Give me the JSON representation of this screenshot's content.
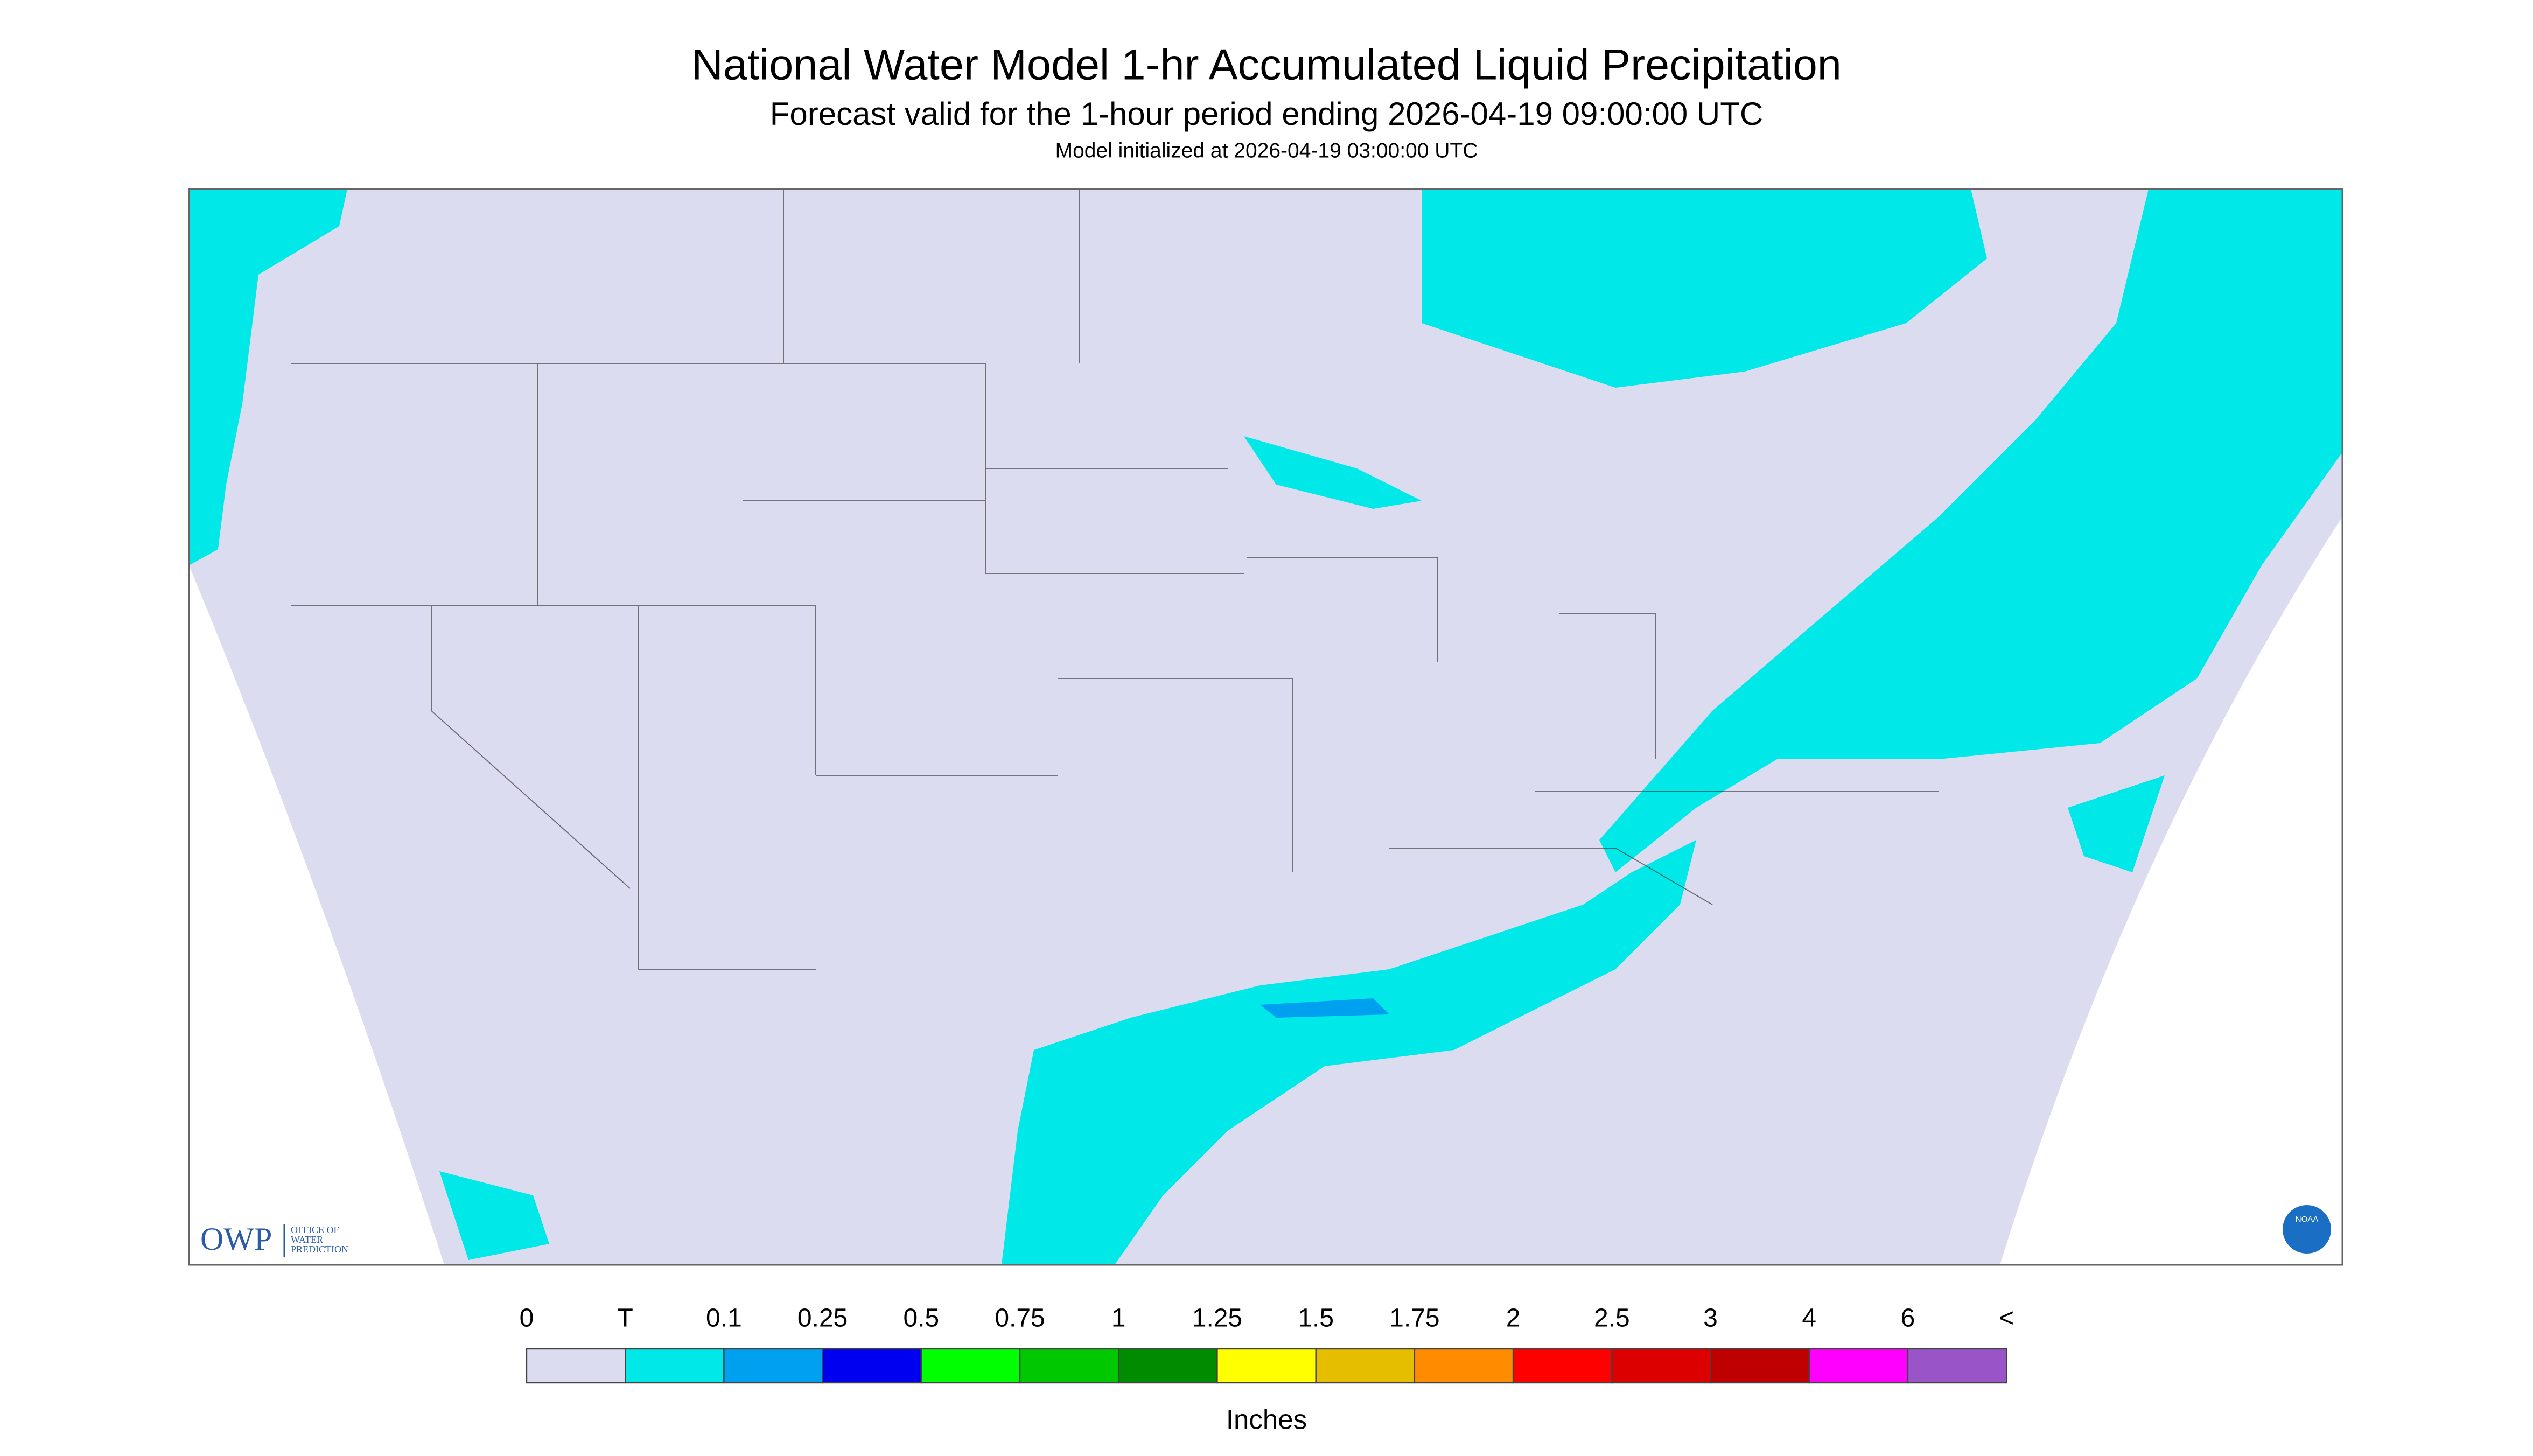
{
  "header": {
    "title": "National Water Model 1-hr Accumulated Liquid Precipitation",
    "subtitle": "Forecast valid for the 1-hour period ending 2026-04-19 09:00:00 UTC",
    "init": "Model initialized at 2026-04-19 03:00:00 UTC"
  },
  "logo": {
    "owp": "OWP",
    "office": [
      "OFFICE OF",
      "WATER",
      "PREDICTION"
    ],
    "noaa": "NOAA"
  },
  "legend": {
    "labels": [
      "0",
      "T",
      "0.1",
      "0.25",
      "0.5",
      "0.75",
      "1",
      "1.25",
      "1.5",
      "1.75",
      "2",
      "2.5",
      "3",
      "4",
      "6",
      "<"
    ],
    "colors": [
      "#dcdcf0",
      "#00e8e8",
      "#00a0f0",
      "#0000f0",
      "#00ff00",
      "#00c800",
      "#008c00",
      "#ffff00",
      "#e6be00",
      "#ff8c00",
      "#ff0000",
      "#dc0000",
      "#be0000",
      "#ff00ff",
      "#9955c8"
    ],
    "unit": "Inches"
  }
}
